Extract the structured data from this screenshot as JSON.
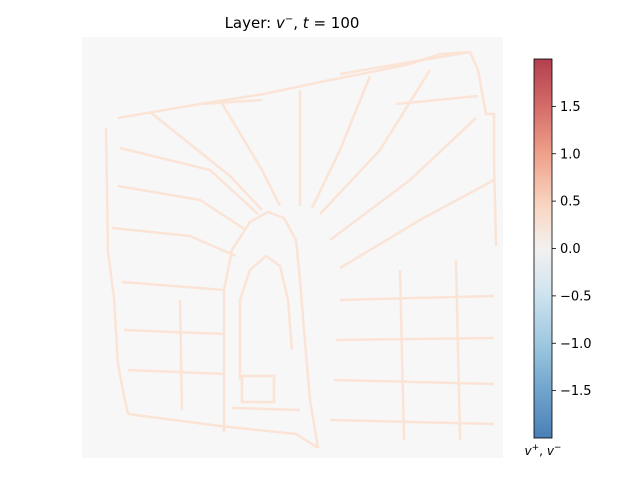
{
  "chart_data": {
    "type": "heatmap",
    "title_prefix": "Layer: ",
    "title_var": "v",
    "title_sup": "−",
    "title_suffix": ", ",
    "title_t": "t",
    "title_eq": " = 100",
    "colormap": "RdBu_r",
    "vmin": -2.0,
    "vmax": 2.0,
    "colorbar": {
      "ticks": [
        {
          "value": 1.5,
          "label": "1.5"
        },
        {
          "value": 1.0,
          "label": "1.0"
        },
        {
          "value": 0.5,
          "label": "0.5"
        },
        {
          "value": 0.0,
          "label": "0.0"
        },
        {
          "value": -0.5,
          "label": "−0.5"
        },
        {
          "value": -1.0,
          "label": "−1.0"
        },
        {
          "value": -1.5,
          "label": "−1.5"
        }
      ],
      "label_v1": "v",
      "label_sup1": "+",
      "label_sep": ", ",
      "label_v2": "v",
      "label_sup2": "−"
    },
    "background_value": 0.0,
    "edge_value": 0.06,
    "colors": {
      "background": "#f7f7f7",
      "edge": "#fbe4d6"
    }
  }
}
